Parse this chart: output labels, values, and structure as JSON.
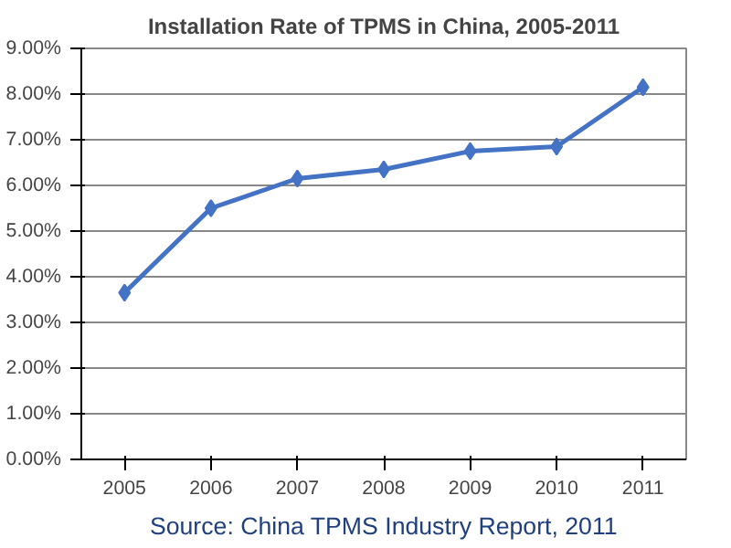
{
  "chart_data": {
    "type": "line",
    "title": "Installation Rate of TPMS in China, 2005-2011",
    "categories": [
      "2005",
      "2006",
      "2007",
      "2008",
      "2009",
      "2010",
      "2011"
    ],
    "series": [
      {
        "color": "#4472c4",
        "values": [
          3.65,
          5.5,
          6.15,
          6.35,
          6.75,
          6.85,
          8.15
        ]
      }
    ],
    "ylim": [
      0,
      9
    ],
    "yticks": [
      {
        "value": 0,
        "label": "0.00%"
      },
      {
        "value": 1,
        "label": "1.00%"
      },
      {
        "value": 2,
        "label": "2.00%"
      },
      {
        "value": 3,
        "label": "3.00%"
      },
      {
        "value": 4,
        "label": "4.00%"
      },
      {
        "value": 5,
        "label": "5.00%"
      },
      {
        "value": 6,
        "label": "6.00%"
      },
      {
        "value": 7,
        "label": "7.00%"
      },
      {
        "value": 8,
        "label": "8.00%"
      },
      {
        "value": 9,
        "label": "9.00%"
      }
    ],
    "grid": "y",
    "marker": "diamond",
    "line_style": "solid",
    "annotations": [
      "Source: China TPMS Industry Report, 2011"
    ]
  }
}
